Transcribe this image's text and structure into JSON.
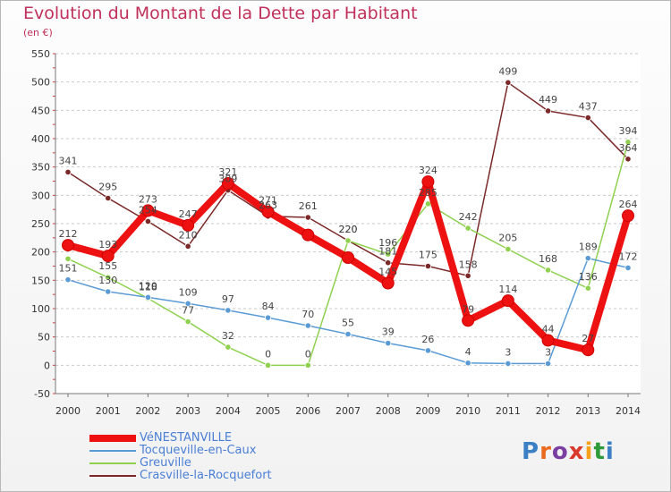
{
  "title": "Evolution du Montant de la Dette par Habitant",
  "unit": "(en €)",
  "brand": {
    "text": "Proxiti",
    "colors": [
      "#3b7fc4",
      "#e96b1f",
      "#7a3fa0",
      "#d93a2c",
      "#f5a21a",
      "#2f9a3a",
      "#3b7fc4"
    ]
  },
  "chart_data": {
    "type": "line",
    "title": "Evolution du Montant de la Dette par Habitant",
    "ylabel": "(en €)",
    "xlabel": "",
    "ylim": [
      -50,
      550
    ],
    "yticks": [
      -50,
      0,
      50,
      100,
      150,
      200,
      250,
      300,
      350,
      400,
      450,
      500,
      550
    ],
    "x": [
      "2000",
      "2001",
      "2002",
      "2003",
      "2004",
      "2005",
      "2006",
      "2007",
      "2008",
      "2009",
      "2010",
      "2011",
      "2012",
      "2013",
      "2014"
    ],
    "grid": "horizontal dashed",
    "legend": "bottom-left",
    "series": [
      {
        "name": "VéNESTANVILLE",
        "color": "#ee1111",
        "width": 8,
        "values": [
          212,
          193,
          273,
          247,
          321,
          271,
          230,
          190,
          145,
          324,
          79,
          114,
          44,
          27,
          264
        ],
        "labels": [
          "212",
          "193",
          "273",
          "247",
          "321",
          "271",
          "",
          "",
          "145",
          "324",
          "79",
          "114",
          "44",
          "27",
          "264"
        ]
      },
      {
        "name": "Tocqueville-en-Caux",
        "color": "#5b9bd5",
        "width": 1.5,
        "values": [
          151,
          130,
          120,
          109,
          97,
          84,
          70,
          55,
          39,
          26,
          4,
          3,
          3,
          189,
          172
        ],
        "labels": [
          "151",
          "130",
          "120",
          "109",
          "97",
          "84",
          "70",
          "55",
          "39",
          "26",
          "4",
          "3",
          "3",
          "189",
          "172"
        ]
      },
      {
        "name": "Greuville",
        "color": "#8fd14f",
        "width": 1.5,
        "values": [
          188,
          155,
          118,
          77,
          32,
          0,
          0,
          220,
          196,
          285,
          242,
          205,
          168,
          136,
          394
        ],
        "labels": [
          "",
          "155",
          "118",
          "77",
          "32",
          "0",
          "0",
          "220",
          "196",
          "285",
          "242",
          "205",
          "168",
          "136",
          "394"
        ]
      },
      {
        "name": "Crasville-la-Rocquefort",
        "color": "#7b2828",
        "width": 1.5,
        "values": [
          341,
          295,
          254,
          210,
          309,
          263,
          261,
          220,
          181,
          175,
          158,
          499,
          449,
          437,
          364
        ],
        "labels": [
          "341",
          "295",
          "254",
          "210",
          "309",
          "263",
          "261",
          "220",
          "181",
          "175",
          "158",
          "499",
          "449",
          "437",
          "364"
        ]
      }
    ]
  }
}
